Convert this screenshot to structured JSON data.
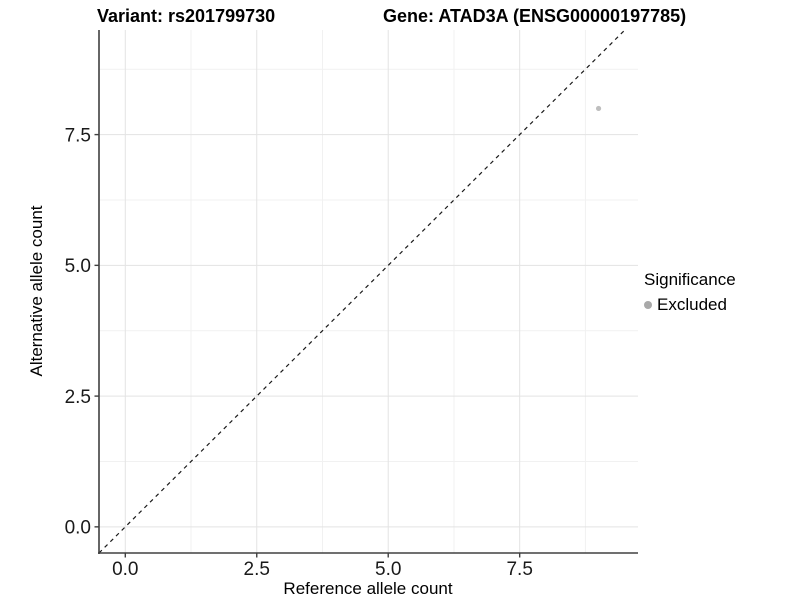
{
  "header": {
    "variant_title": "Variant: rs201799730",
    "gene_title": "Gene: ATAD3A (ENSG00000197785)"
  },
  "legend": {
    "title": "Significance",
    "items": [
      {
        "label": "Excluded",
        "marker": "circle-icon",
        "color": "#a9a9a9"
      }
    ]
  },
  "chart_data": {
    "type": "scatter",
    "title": "Variant: rs201799730          Gene: ATAD3A (ENSG00000197785)",
    "xlabel": "Reference allele count",
    "ylabel": "Alternative allele count",
    "xlim": [
      -0.5,
      9.75
    ],
    "ylim": [
      -0.5,
      9.5
    ],
    "x_ticks": {
      "values": [
        0,
        2.5,
        5,
        7.5
      ],
      "labels": [
        "0.0",
        "2.5",
        "5.0",
        "7.5"
      ]
    },
    "y_ticks": {
      "values": [
        0,
        2.5,
        5,
        7.5
      ],
      "labels": [
        "0.0",
        "2.5",
        "5.0",
        "7.5"
      ]
    },
    "x_minor": [
      1.25,
      3.75,
      6.25,
      8.75
    ],
    "y_minor": [
      1.25,
      3.75,
      6.25,
      8.75
    ],
    "grid": true,
    "legend_position": "right",
    "legend_title": "Significance",
    "series": [
      {
        "name": "Excluded",
        "color": "#bebebe",
        "points": [
          {
            "x": 9,
            "y": 8
          }
        ]
      }
    ],
    "reference_line": {
      "type": "identity",
      "style": "dashed",
      "color": "#1a1a1a"
    },
    "style": {
      "background": "#ffffff",
      "grid_major_color": "#e3e3e3",
      "grid_minor_color": "#f1f1f1",
      "axis_color": "#404040",
      "tick_label_color": "#1a1a1a",
      "tick_label_size": 19
    }
  }
}
